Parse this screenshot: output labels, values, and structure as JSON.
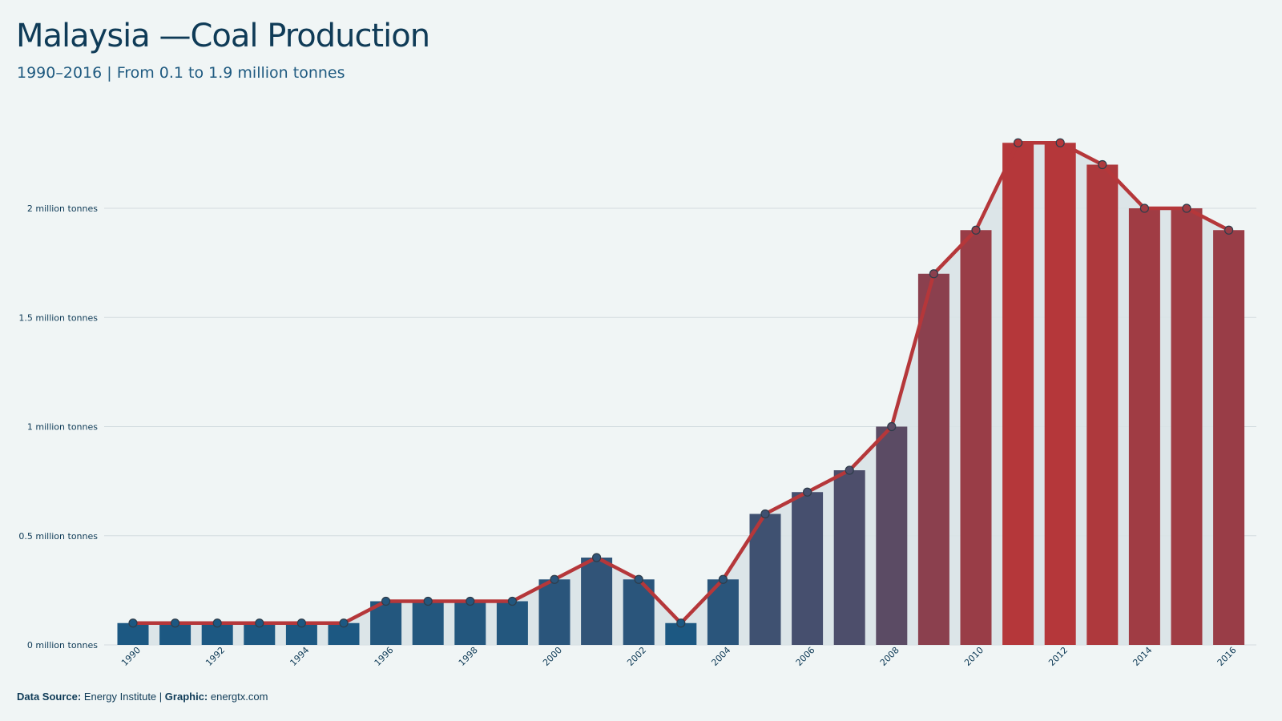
{
  "header": {
    "title": "Malaysia —Coal Production",
    "subtitle": "1990–2016 | From 0.1 to 1.9 million tonnes"
  },
  "footer": {
    "source_label": "Data Source:",
    "source_value": "Energy Institute",
    "separator": "|",
    "graphic_label": "Graphic:",
    "graphic_value": "energtx.com"
  },
  "colors": {
    "background": "#f0f5f5",
    "low": "#155a85",
    "high": "#b5373a",
    "line": "#b5373a",
    "area": "#d9e3e7",
    "grid": "#d3dcdf"
  },
  "chart_data": {
    "type": "bar",
    "title": "Malaysia —Coal Production",
    "subtitle": "1990–2016 | From 0.1 to 1.9 million tonnes",
    "categories": [
      "1990",
      "1991",
      "1992",
      "1993",
      "1994",
      "1995",
      "1996",
      "1997",
      "1998",
      "1999",
      "2000",
      "2001",
      "2002",
      "2003",
      "2004",
      "2005",
      "2006",
      "2007",
      "2008",
      "2009",
      "2010",
      "2011",
      "2012",
      "2013",
      "2014",
      "2015",
      "2016"
    ],
    "values": [
      0.1,
      0.1,
      0.1,
      0.1,
      0.1,
      0.1,
      0.2,
      0.2,
      0.2,
      0.2,
      0.3,
      0.4,
      0.3,
      0.1,
      0.3,
      0.6,
      0.7,
      0.8,
      1.0,
      1.7,
      1.9,
      2.3,
      2.3,
      2.2,
      2.0,
      2.0,
      1.9
    ],
    "x_tick_labels": [
      "1990",
      "1992",
      "1994",
      "1996",
      "1998",
      "2000",
      "2002",
      "2004",
      "2006",
      "2008",
      "2010",
      "2012",
      "2014",
      "2016"
    ],
    "y_ticks": [
      0,
      0.5,
      1,
      1.5,
      2
    ],
    "y_tick_labels": [
      "0 million tonnes",
      "0.5 million tonnes",
      "1 million tonnes",
      "1.5 million tonnes",
      "2 million tonnes"
    ],
    "ylim": [
      0,
      2.3
    ],
    "unit": "million tonnes",
    "overlay": "line with markers and shaded area",
    "grid": "horizontal"
  }
}
